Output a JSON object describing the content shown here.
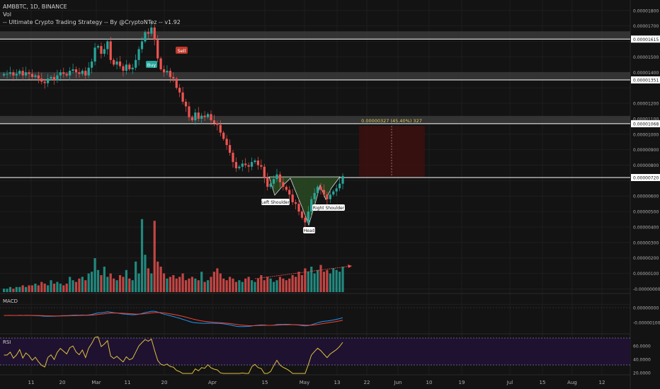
{
  "header": {
    "symbol_line": "AMBBTC, 1D, BINANCE",
    "line2": "Vol",
    "line3": "-- Ultimate Crypto Trading Strategy -- By @CryptoNTez -- v1.92"
  },
  "colors": {
    "background": "#131313",
    "bull": "#26a69a",
    "bear": "#ef5350",
    "zone": "#3a3a3a",
    "target_box": "#3b1010",
    "pattern_fill": "#2a4a22",
    "macd_line": "#2196f3",
    "signal_line": "#f44336",
    "rsi_line": "#e0c040",
    "rsi_band": "#1e1230"
  },
  "chart_data": {
    "type": "candlestick",
    "price_axis_labels": [
      "0.00001800",
      "0.00001700",
      "0.00001615",
      "0.00001500",
      "0.00001400",
      "0.00001351",
      "0.00001200",
      "0.00001100",
      "0.00001068",
      "0.00001000",
      "0.00000900",
      "0.00000800",
      "0.00000720",
      "0.00000600",
      "0.00000500",
      "0.00000400",
      "0.00000300",
      "0.00000200",
      "0.00000100",
      "-0.00000000"
    ],
    "x_axis_labels": [
      "11",
      "20",
      "Mar",
      "11",
      "20",
      "Apr",
      "15",
      "May",
      "13",
      "22",
      "Jun",
      "10",
      "19",
      "Jul",
      "15",
      "Aug",
      "12"
    ],
    "horizontal_levels": [
      {
        "price": 1.615e-05,
        "label": "0.00001615",
        "zone": true
      },
      {
        "price": 1.351e-05,
        "label": "0.00001351",
        "zone": true
      },
      {
        "price": 1.068e-05,
        "label": "0.00001068",
        "zone": true
      },
      {
        "price": 7.2e-06,
        "label": "0.00000720",
        "zone": false
      }
    ],
    "target_annotation": "0.00000327 (45.40%) 327",
    "pattern_labels": [
      "Left Shoulder",
      "Head",
      "Right Shoulder"
    ],
    "signals": [
      "Buy",
      "Sell"
    ],
    "macd_title": "MACD",
    "macd_axis_labels": [
      "0.00000000",
      "-0.00000100"
    ],
    "rsi_title": "RSI",
    "rsi_axis_labels": [
      "60.0000",
      "40.0000",
      "20.0000"
    ],
    "closes": [
      1.39,
      1.39,
      1.4,
      1.38,
      1.39,
      1.41,
      1.38,
      1.4,
      1.39,
      1.37,
      1.38,
      1.36,
      1.34,
      1.33,
      1.36,
      1.37,
      1.35,
      1.38,
      1.4,
      1.39,
      1.38,
      1.41,
      1.42,
      1.4,
      1.39,
      1.41,
      1.38,
      1.43,
      1.47,
      1.56,
      1.57,
      1.52,
      1.55,
      1.6,
      1.48,
      1.45,
      1.47,
      1.44,
      1.41,
      1.45,
      1.42,
      1.43,
      1.48,
      1.55,
      1.6,
      1.66,
      1.65,
      1.69,
      1.61,
      1.49,
      1.42,
      1.4,
      1.41,
      1.37,
      1.36,
      1.3,
      1.27,
      1.21,
      1.18,
      1.11,
      1.09,
      1.14,
      1.1,
      1.12,
      1.11,
      1.13,
      1.09,
      1.07,
      1.06,
      1.01,
      0.97,
      0.93,
      0.88,
      0.82,
      0.78,
      0.79,
      0.81,
      0.8,
      0.79,
      0.82,
      0.83,
      0.8,
      0.79,
      0.72,
      0.66,
      0.68,
      0.71,
      0.74,
      0.69,
      0.66,
      0.64,
      0.61,
      0.56,
      0.55,
      0.5,
      0.46,
      0.43,
      0.5,
      0.58,
      0.62,
      0.66,
      0.64,
      0.61,
      0.58,
      0.61,
      0.63,
      0.65,
      0.68,
      0.73
    ],
    "volumes": [
      0.2,
      0.2,
      0.3,
      0.2,
      0.3,
      0.3,
      0.4,
      0.3,
      0.4,
      0.4,
      0.5,
      0.4,
      0.6,
      0.5,
      0.4,
      0.7,
      0.5,
      0.6,
      0.5,
      0.4,
      0.5,
      0.9,
      0.7,
      0.6,
      0.8,
      0.9,
      0.7,
      1.1,
      1.2,
      2.0,
      1.3,
      1.0,
      1.5,
      0.9,
      1.1,
      0.8,
      0.7,
      1.0,
      0.9,
      1.3,
      0.8,
      0.7,
      1.8,
      1.1,
      4.3,
      2.2,
      1.4,
      1.1,
      4.2,
      1.8,
      1.5,
      1.1,
      0.8,
      0.9,
      1.0,
      0.8,
      0.9,
      1.1,
      0.7,
      0.8,
      0.9,
      0.8,
      0.7,
      1.2,
      0.6,
      0.7,
      0.9,
      1.2,
      1.4,
      1.1,
      0.8,
      0.7,
      0.9,
      0.8,
      0.6,
      0.7,
      0.6,
      0.8,
      0.9,
      0.7,
      0.6,
      0.8,
      1.0,
      0.7,
      0.9,
      0.8,
      0.6,
      0.7,
      0.9,
      0.8,
      0.7,
      0.8,
      1.0,
      0.9,
      1.2,
      1.0,
      1.4,
      1.2,
      1.5,
      1.1,
      1.3,
      1.6,
      1.2,
      1.3,
      1.1,
      1.4,
      1.3,
      1.2,
      1.5
    ]
  }
}
